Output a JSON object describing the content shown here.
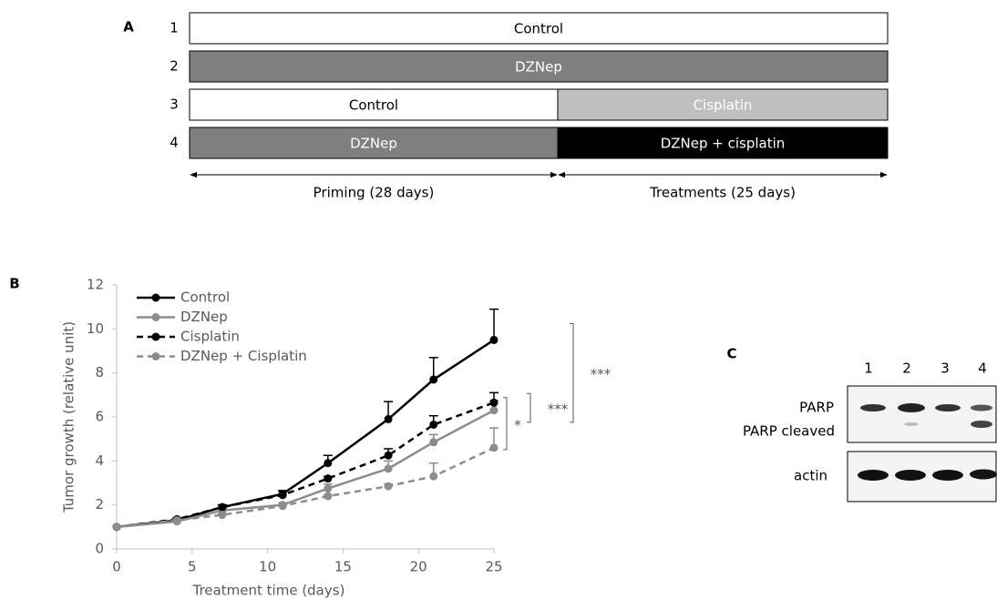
{
  "panel_a": {
    "label": "A",
    "rows": [
      {
        "number": "1",
        "segments": [
          "Control"
        ]
      },
      {
        "number": "2",
        "segments": [
          "DZNep"
        ]
      },
      {
        "number": "3",
        "segments": [
          "Control",
          "Cisplatin"
        ]
      },
      {
        "number": "4",
        "segments": [
          "DZNep",
          "DZNep + cisplatin"
        ]
      }
    ],
    "phases": [
      "Priming (28 days)",
      "Treatments (25 days)"
    ]
  },
  "panel_b": {
    "label": "B"
  },
  "chart_data": {
    "type": "line",
    "x": [
      0,
      4,
      7,
      11,
      14,
      18,
      21,
      25
    ],
    "series": [
      {
        "name": "Control",
        "color": "#000000",
        "dashed": false,
        "values": [
          1,
          1.3,
          1.9,
          2.5,
          3.9,
          5.9,
          7.7,
          9.5
        ],
        "errors": [
          0,
          0.1,
          0.1,
          0.15,
          0.35,
          0.8,
          1.0,
          1.4
        ]
      },
      {
        "name": "DZNep",
        "color": "#8c8c8c",
        "dashed": false,
        "values": [
          1,
          1.25,
          1.75,
          2.0,
          2.75,
          3.65,
          4.85,
          6.3
        ],
        "errors": [
          0,
          0.05,
          0.1,
          0.1,
          0.2,
          0.35,
          0.35,
          0.45
        ]
      },
      {
        "name": "Cisplatin",
        "color": "#000000",
        "dashed": true,
        "values": [
          1,
          1.35,
          1.9,
          2.45,
          3.2,
          4.25,
          5.65,
          6.65
        ],
        "errors": [
          0,
          0.05,
          0.1,
          0.2,
          0.1,
          0.3,
          0.4,
          0.45
        ]
      },
      {
        "name": "DZNep + Cisplatin",
        "color": "#8c8c8c",
        "dashed": true,
        "values": [
          1,
          1.3,
          1.55,
          1.95,
          2.4,
          2.85,
          3.3,
          4.6
        ],
        "errors": [
          0,
          0.05,
          0.05,
          0.05,
          0.05,
          0.1,
          0.6,
          0.9
        ]
      }
    ],
    "xlim": [
      0,
      25
    ],
    "xticks": [
      0,
      5,
      10,
      15,
      20,
      25
    ],
    "ylim": [
      0,
      12
    ],
    "yticks": [
      0,
      2,
      4,
      6,
      8,
      10,
      12
    ],
    "xlabel": "Treatment time (days)",
    "ylabel": "Tumor growth (relative unit)",
    "grid": false,
    "legend": "upper-left",
    "annotations": [
      {
        "text": "***"
      },
      {
        "text": "***"
      },
      {
        "text": "*"
      }
    ]
  },
  "panel_c": {
    "label": "C",
    "lanes": [
      "1",
      "2",
      "3",
      "4"
    ],
    "bands": [
      "PARP",
      "PARP cleaved",
      "actin"
    ]
  }
}
